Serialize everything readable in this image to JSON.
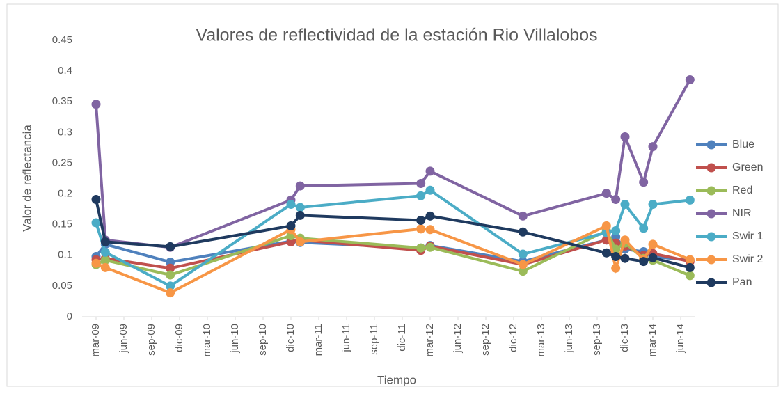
{
  "chart_data": {
    "type": "line",
    "title": "Valores de reflectividad de la estación Rio Villalobos",
    "x_label": "Tiempo",
    "y_label": "Valor de reflectancia",
    "x": [
      "2009-03",
      "2009-04",
      "2009-11",
      "2010-12",
      "2011-01",
      "2012-02",
      "2012-03",
      "2013-01",
      "2013-10",
      "2013-11",
      "2013-12",
      "2014-02",
      "2014-03",
      "2014-07"
    ],
    "series": [
      {
        "name": "Blue",
        "color": "#4f81bd",
        "values": [
          0.098,
          0.118,
          0.089,
          0.123,
          0.121,
          0.112,
          0.116,
          0.09,
          0.125,
          0.13,
          0.11,
          0.106,
          0.098,
          0.092
        ]
      },
      {
        "name": "Green",
        "color": "#c0504d",
        "values": [
          0.093,
          0.095,
          0.079,
          0.122,
          0.125,
          0.108,
          0.115,
          0.085,
          0.125,
          0.12,
          0.115,
          0.1,
          0.103,
          0.09
        ]
      },
      {
        "name": "Red",
        "color": "#9bbb59",
        "values": [
          0.085,
          0.092,
          0.068,
          0.132,
          0.128,
          0.112,
          0.113,
          0.074,
          0.14,
          0.11,
          0.12,
          0.095,
          0.092,
          0.067
        ]
      },
      {
        "name": "NIR",
        "color": "#8064a2",
        "values": [
          0.346,
          0.125,
          0.113,
          0.19,
          0.213,
          0.217,
          0.237,
          0.164,
          0.201,
          0.191,
          0.293,
          0.219,
          0.277,
          0.386
        ]
      },
      {
        "name": "Swir 1",
        "color": "#4bacc6",
        "values": [
          0.153,
          0.105,
          0.05,
          0.183,
          0.178,
          0.197,
          0.206,
          0.102,
          0.137,
          0.14,
          0.183,
          0.144,
          0.183,
          0.19
        ]
      },
      {
        "name": "Swir 2",
        "color": "#f79646",
        "values": [
          0.087,
          0.08,
          0.039,
          0.142,
          0.122,
          0.143,
          0.142,
          0.085,
          0.148,
          0.079,
          0.125,
          0.093,
          0.118,
          0.093
        ]
      },
      {
        "name": "Pan",
        "color": "#1f3a5f",
        "values": [
          0.191,
          0.122,
          0.114,
          0.148,
          0.165,
          0.157,
          0.164,
          0.138,
          0.104,
          0.098,
          0.095,
          0.09,
          0.096,
          0.08
        ]
      }
    ],
    "ylim": [
      0,
      0.45
    ],
    "yticks": [
      0,
      0.05,
      0.1,
      0.15,
      0.2,
      0.25,
      0.3,
      0.35,
      0.4,
      0.45
    ],
    "xticks": [
      {
        "value": "2009-03",
        "label": "mar-09"
      },
      {
        "value": "2009-06",
        "label": "jun-09"
      },
      {
        "value": "2009-09",
        "label": "sep-09"
      },
      {
        "value": "2009-12",
        "label": "dic-09"
      },
      {
        "value": "2010-03",
        "label": "mar-10"
      },
      {
        "value": "2010-06",
        "label": "jun-10"
      },
      {
        "value": "2010-09",
        "label": "sep-10"
      },
      {
        "value": "2010-12",
        "label": "dic-10"
      },
      {
        "value": "2011-03",
        "label": "mar-11"
      },
      {
        "value": "2011-06",
        "label": "jun-11"
      },
      {
        "value": "2011-09",
        "label": "sep-11"
      },
      {
        "value": "2011-12",
        "label": "dic-11"
      },
      {
        "value": "2012-03",
        "label": "mar-12"
      },
      {
        "value": "2012-06",
        "label": "jun-12"
      },
      {
        "value": "2012-09",
        "label": "sep-12"
      },
      {
        "value": "2012-12",
        "label": "dic-12"
      },
      {
        "value": "2013-03",
        "label": "mar-13"
      },
      {
        "value": "2013-06",
        "label": "jun-13"
      },
      {
        "value": "2013-09",
        "label": "sep-13"
      },
      {
        "value": "2013-12",
        "label": "dic-13"
      },
      {
        "value": "2014-03",
        "label": "mar-14"
      },
      {
        "value": "2014-06",
        "label": "jun-14"
      }
    ],
    "grid": false,
    "legend": "right"
  }
}
